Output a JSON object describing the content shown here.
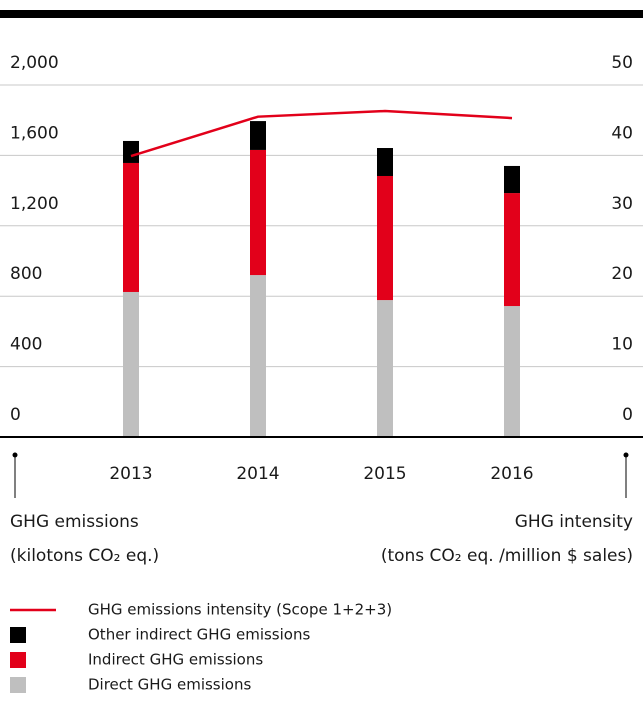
{
  "chart_data": {
    "type": "bar",
    "stacked": true,
    "categories": [
      "2013",
      "2014",
      "2015",
      "2016"
    ],
    "series": [
      {
        "name": "Direct GHG emissions",
        "color": "#bfbfbf",
        "values": [
          824,
          920,
          778,
          744
        ]
      },
      {
        "name": "Indirect GHG emissions",
        "color": "#e2001a",
        "values": [
          733,
          711,
          705,
          642
        ]
      },
      {
        "name": "Other indirect GHG emissions",
        "color": "#000000",
        "values": [
          125,
          164,
          159,
          154
        ]
      },
      {
        "name": "GHG emissions intensity (Scope 1+2+3)",
        "color": "#e2001a",
        "type": "line",
        "axis": "y2",
        "values": [
          39.9,
          45.5,
          46.3,
          45.3
        ]
      }
    ],
    "ylim": [
      0,
      2000
    ],
    "yticks": [
      0,
      400,
      800,
      {
        "value": 1200,
        "label": "1,200"
      },
      {
        "value": 1600,
        "label": "1,600"
      },
      {
        "value": 2000,
        "label": "2,000"
      }
    ],
    "y2lim": [
      0,
      50
    ],
    "y2ticks": [
      0,
      10,
      20,
      30,
      40,
      50
    ],
    "ylabel": [
      "GHG emissions",
      "(kilotons CO₂ eq.)"
    ],
    "y2label": [
      "GHG intensity",
      "(tons CO₂ eq. /million $ sales)"
    ],
    "grid": true
  }
}
